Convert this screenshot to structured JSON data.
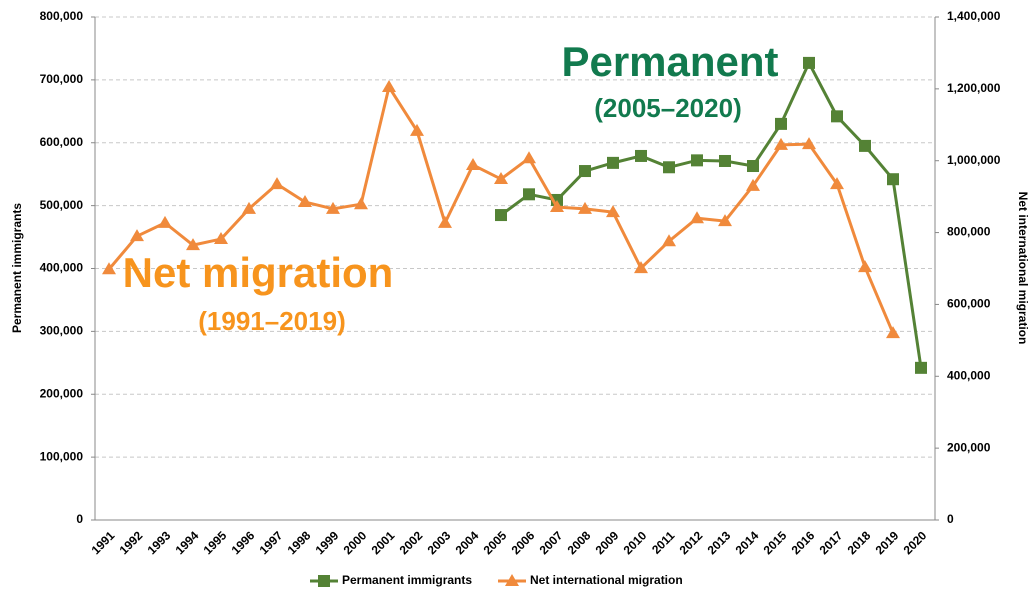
{
  "chart_data": {
    "type": "line",
    "categories": [
      "1991",
      "1992",
      "1993",
      "1994",
      "1995",
      "1996",
      "1997",
      "1998",
      "1999",
      "2000",
      "2001",
      "2002",
      "2003",
      "2004",
      "2005",
      "2006",
      "2007",
      "2008",
      "2009",
      "2010",
      "2011",
      "2012",
      "2013",
      "2014",
      "2015",
      "2016",
      "2017",
      "2018",
      "2019",
      "2020"
    ],
    "series": [
      {
        "name": "Permanent immigrants",
        "color": "#548235",
        "marker": "square",
        "values": [
          null,
          null,
          null,
          null,
          null,
          null,
          null,
          null,
          null,
          null,
          null,
          null,
          null,
          null,
          485000,
          518000,
          509000,
          555000,
          568000,
          579000,
          561000,
          572000,
          571000,
          563000,
          630000,
          727000,
          642000,
          595000,
          542000,
          242000
        ]
      },
      {
        "name": "Net international migration",
        "color": "#f08a3c",
        "marker": "triangle",
        "axis": "y2",
        "values": [
          698000,
          790000,
          827000,
          765000,
          782000,
          866000,
          935000,
          885000,
          866000,
          879000,
          1205000,
          1083000,
          827000,
          988000,
          949000,
          1007000,
          871000,
          866000,
          857000,
          701000,
          776000,
          840000,
          832000,
          930000,
          1044000,
          1046000,
          935000,
          704000,
          520000,
          null
        ]
      }
    ],
    "ylabel": "Permanent immigrants",
    "y2label": "Net international migration",
    "ylim": [
      0,
      800000
    ],
    "yticks": [
      0,
      {
        "value": 100000,
        "label": "100,000"
      },
      {
        "value": 200000,
        "label": "200,000"
      },
      {
        "value": 300000,
        "label": "300,000"
      },
      {
        "value": 400000,
        "label": "400,000"
      },
      {
        "value": 500000,
        "label": "500,000"
      },
      {
        "value": 600000,
        "label": "600,000"
      },
      {
        "value": 700000,
        "label": "700,000"
      },
      {
        "value": 800000,
        "label": "800,000"
      }
    ],
    "y2lim": [
      0,
      1400000
    ],
    "y2ticks": [
      0,
      {
        "value": 200000,
        "label": "200,000"
      },
      {
        "value": 400000,
        "label": "400,000"
      },
      {
        "value": 600000,
        "label": "600,000"
      },
      {
        "value": 800000,
        "label": "800,000"
      },
      {
        "value": 1000000,
        "label": "1,000,000"
      },
      {
        "value": 1200000,
        "label": "1,200,000"
      },
      {
        "value": 1400000,
        "label": "1,400,000"
      }
    ],
    "grid": true,
    "legend": "bottom",
    "annotations": [
      {
        "text": "Permanent",
        "color": "#127a4e"
      },
      {
        "text": "(2005–2020)",
        "color": "#127a4e"
      },
      {
        "text": "Net migration",
        "color": "#f7941d"
      },
      {
        "text": "(1991–2019)",
        "color": "#f7941d"
      }
    ]
  }
}
